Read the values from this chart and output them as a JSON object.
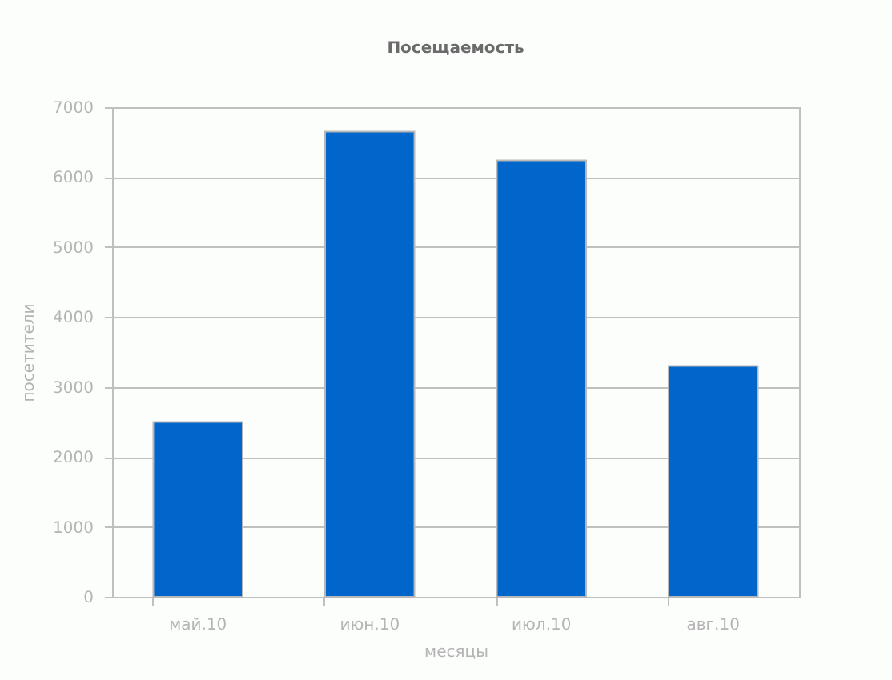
{
  "chart_data": {
    "type": "bar",
    "title": "Посещаемость",
    "xlabel": "месяцы",
    "ylabel": "посетители",
    "categories": [
      "май.10",
      "июн.10",
      "июл.10",
      "авг.10"
    ],
    "values": [
      2500,
      6650,
      6240,
      3300
    ],
    "color": "#0066cc",
    "ylim": [
      0,
      7000
    ],
    "yticks": [
      0,
      1000,
      2000,
      3000,
      4000,
      5000,
      6000,
      7000
    ],
    "grid": "y"
  }
}
